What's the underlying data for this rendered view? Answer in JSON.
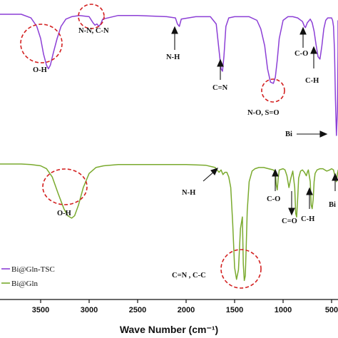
{
  "chart_data": {
    "type": "line",
    "title": "",
    "xlabel": "Wave Number (cm⁻¹)",
    "ylabel": "",
    "xlim": [
      4000,
      400
    ],
    "x_reversed": true,
    "grid": false,
    "legend_position": "bottom-left",
    "x_ticks": [
      3500,
      3000,
      2500,
      2000,
      1500,
      1000,
      500
    ],
    "x_tick_labels": [
      "3500",
      "3000",
      "2500",
      "2000",
      "1500",
      "1000",
      "500"
    ],
    "series": [
      {
        "name": "Bi@Gln-TSC",
        "color": "#8c3fd6",
        "x": [
          4000,
          3700,
          3600,
          3540,
          3500,
          3470,
          3440,
          3420,
          3400,
          3370,
          3330,
          3290,
          3240,
          3180,
          3100,
          3000,
          2960,
          2940,
          2920,
          2900,
          2880,
          2860,
          2700,
          2500,
          2200,
          2110,
          2090,
          2070,
          2050,
          1900,
          1750,
          1690,
          1660,
          1640,
          1625,
          1610,
          1590,
          1560,
          1500,
          1350,
          1270,
          1230,
          1190,
          1160,
          1130,
          1100,
          1080,
          1060,
          1040,
          1000,
          950,
          900,
          850,
          800,
          780,
          770,
          750,
          720,
          700,
          680,
          660,
          640,
          620,
          600,
          580,
          560,
          540,
          520,
          500,
          490,
          480,
          470,
          460,
          450,
          440,
          430,
          420,
          400
        ],
        "y": [
          0.0,
          0.0,
          0.03,
          0.1,
          0.2,
          0.33,
          0.42,
          0.45,
          0.42,
          0.32,
          0.2,
          0.1,
          0.04,
          0.02,
          0.01,
          0.02,
          0.07,
          0.09,
          0.08,
          0.1,
          0.08,
          0.04,
          0.01,
          0.01,
          0.02,
          0.03,
          0.08,
          0.1,
          0.04,
          0.02,
          0.02,
          0.08,
          0.3,
          0.45,
          0.47,
          0.35,
          0.1,
          0.03,
          0.02,
          0.02,
          0.05,
          0.12,
          0.26,
          0.45,
          0.56,
          0.57,
          0.52,
          0.38,
          0.2,
          0.05,
          0.02,
          0.02,
          0.03,
          0.06,
          0.1,
          0.11,
          0.07,
          0.04,
          0.07,
          0.14,
          0.25,
          0.35,
          0.37,
          0.26,
          0.12,
          0.05,
          0.03,
          0.03,
          0.03,
          0.05,
          0.1,
          0.3,
          0.7,
          1.0,
          0.8,
          0.3,
          0.12,
          0.05
        ]
      },
      {
        "name": "Bi@Gln",
        "color": "#7aaa2e",
        "x": [
          4000,
          3800,
          3700,
          3600,
          3500,
          3440,
          3380,
          3320,
          3260,
          3220,
          3180,
          3150,
          3110,
          3060,
          3000,
          2930,
          2850,
          2700,
          2500,
          2200,
          2000,
          1800,
          1700,
          1680,
          1660,
          1640,
          1620,
          1600,
          1580,
          1560,
          1540,
          1520,
          1500,
          1480,
          1460,
          1440,
          1420,
          1410,
          1400,
          1390,
          1380,
          1370,
          1350,
          1320,
          1290,
          1250,
          1200,
          1150,
          1100,
          1080,
          1070,
          1060,
          1050,
          1040,
          1000,
          980,
          960,
          940,
          920,
          900,
          880,
          870,
          860,
          850,
          840,
          820,
          800,
          780,
          760,
          750,
          740,
          720,
          710,
          700,
          690,
          680,
          670,
          650,
          620,
          590,
          570,
          550,
          520,
          500,
          480,
          460,
          450,
          440,
          430,
          420,
          400
        ],
        "y": [
          0.0,
          0.0,
          0.0,
          0.005,
          0.015,
          0.04,
          0.11,
          0.25,
          0.38,
          0.44,
          0.46,
          0.44,
          0.35,
          0.2,
          0.08,
          0.03,
          0.015,
          0.005,
          0.005,
          0.005,
          0.005,
          0.01,
          0.03,
          0.05,
          0.07,
          0.05,
          0.09,
          0.07,
          0.07,
          0.11,
          0.2,
          0.5,
          0.88,
          0.98,
          0.9,
          0.55,
          0.45,
          0.85,
          0.99,
          0.95,
          0.7,
          0.4,
          0.15,
          0.06,
          0.04,
          0.03,
          0.03,
          0.04,
          0.05,
          0.07,
          0.18,
          0.22,
          0.12,
          0.05,
          0.04,
          0.05,
          0.1,
          0.2,
          0.12,
          0.06,
          0.2,
          0.42,
          0.45,
          0.3,
          0.12,
          0.06,
          0.05,
          0.07,
          0.1,
          0.07,
          0.05,
          0.15,
          0.35,
          0.38,
          0.3,
          0.15,
          0.08,
          0.05,
          0.04,
          0.04,
          0.05,
          0.06,
          0.05,
          0.04,
          0.05,
          0.12,
          0.15,
          0.08,
          0.06,
          0.05,
          0.05
        ]
      }
    ],
    "annotations": {
      "gln_tsc": [
        "O-H",
        "N-N, C-N",
        "N-H",
        "C=N",
        "N-O,  S=O",
        "C-O",
        "C-H",
        "Bi"
      ],
      "gln": [
        "O-H",
        "N-H",
        "C=N , C-C",
        "C-O",
        "C=O",
        "C-H",
        "Bi"
      ]
    }
  }
}
